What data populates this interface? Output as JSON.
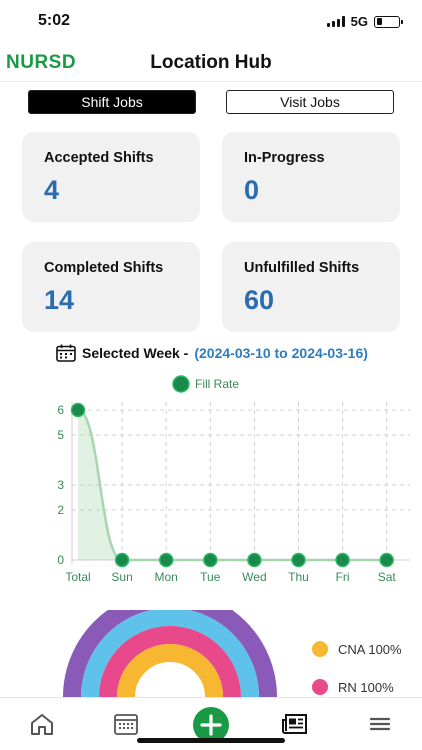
{
  "status": {
    "time": "5:02",
    "network": "5G",
    "battery_level": 0.25
  },
  "header": {
    "brand": "NURSD",
    "title": "Location Hub"
  },
  "tabs": [
    {
      "label": "Shift Jobs",
      "active": true
    },
    {
      "label": "Visit Jobs",
      "active": false
    }
  ],
  "cards": [
    {
      "label": "Accepted Shifts",
      "value": "4"
    },
    {
      "label": "In-Progress",
      "value": "0"
    },
    {
      "label": "Completed Shifts",
      "value": "14"
    },
    {
      "label": "Unfulfilled Shifts",
      "value": "60"
    }
  ],
  "week": {
    "label": "Selected Week - ",
    "range": "(2024-03-10 to 2024-03-16)"
  },
  "chart_data": {
    "type": "area",
    "title": "",
    "legend": [
      "Fill Rate"
    ],
    "legend_position": "top-center",
    "categories": [
      "Total",
      "Sun",
      "Mon",
      "Tue",
      "Wed",
      "Thu",
      "Fri",
      "Sat"
    ],
    "series": [
      {
        "name": "Fill Rate",
        "values": [
          6,
          0,
          0,
          0,
          0,
          0,
          0,
          0
        ]
      }
    ],
    "yticks": [
      0,
      2,
      3,
      5,
      6
    ],
    "ylim": [
      0,
      6
    ],
    "grid": true,
    "colors": {
      "line": "#a6d6ae",
      "point": "#1a8a4c",
      "point_stroke": "#2fb866",
      "tick": "#3a8a5c",
      "grid": "#cfcfcf"
    }
  },
  "gauge": {
    "colors": [
      "#8a5ab8",
      "#5fc2ea",
      "#e8498a",
      "#f7b731"
    ],
    "legend": [
      {
        "label": "CNA 100%",
        "color": "#f7b731"
      },
      {
        "label": "RN 100%",
        "color": "#e8498a"
      }
    ]
  },
  "nav": {
    "icons": [
      "home-icon",
      "calendar-icon",
      "add-icon",
      "news-icon",
      "menu-icon"
    ],
    "accent": "#1a9a44"
  }
}
